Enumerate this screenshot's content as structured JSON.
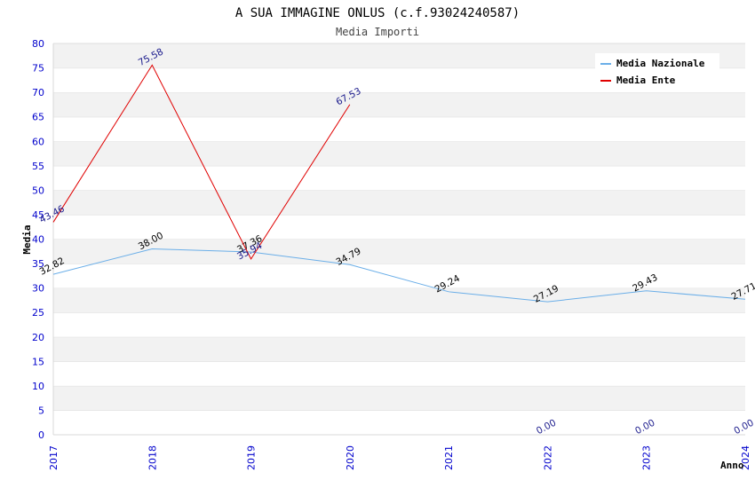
{
  "chart_data": {
    "type": "line",
    "title": "A SUA IMMAGINE ONLUS (c.f.93024240587)",
    "subtitle": "Media Importi",
    "xlabel": "Anno",
    "ylabel": "Media",
    "categories": [
      "2017",
      "2018",
      "2019",
      "2020",
      "2021",
      "2022",
      "2023",
      "2024"
    ],
    "ylim": [
      0,
      80
    ],
    "yticks": [
      "0",
      "5",
      "10",
      "15",
      "20",
      "25",
      "30",
      "35",
      "40",
      "45",
      "50",
      "55",
      "60",
      "65",
      "70",
      "75",
      "80"
    ],
    "grid": true,
    "legend_position": "top-right",
    "series": [
      {
        "name": "Media Nazionale",
        "color": "#6aaee8",
        "label_color": "#000000",
        "values": [
          32.82,
          38.0,
          37.36,
          34.79,
          29.24,
          27.19,
          29.43,
          27.71
        ],
        "labels": [
          "32.82",
          "38.00",
          "37.36",
          "34.79",
          "29.24",
          "27.19",
          "29.43",
          "27.71"
        ]
      },
      {
        "name": "Media Ente",
        "color": "#e00000",
        "label_color": "#1a1a8c",
        "values": [
          43.46,
          75.58,
          35.94,
          67.53,
          null,
          0.0,
          0.0,
          0.0
        ],
        "labels": [
          "43.46",
          "75.58",
          "35.94",
          "67.53",
          null,
          "0.00",
          "0.00",
          "0.00"
        ],
        "line_until_index": 3
      }
    ]
  }
}
